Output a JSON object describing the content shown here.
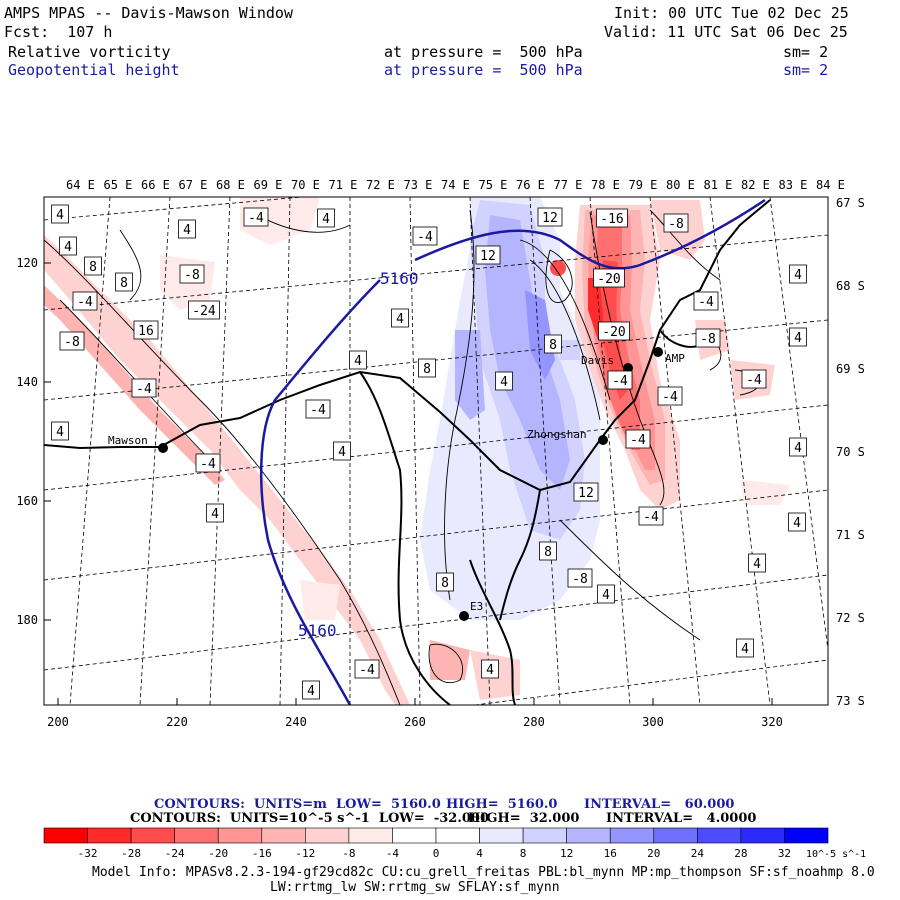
{
  "header": {
    "title": "AMPS MPAS -- Davis-Mawson Window",
    "init": "Init: 00 UTC Tue 02 Dec 25",
    "fcst": "Fcst:  107 h",
    "valid": "Valid: 11 UTC Sat 06 Dec 25",
    "fields": [
      {
        "name": "Relative vorticity",
        "level": "at pressure =  500 hPa",
        "sm": "sm= 2",
        "color": "#000000"
      },
      {
        "name": "Geopotential height",
        "level": "at pressure =  500 hPa",
        "sm": "sm= 2",
        "color": "#1a1aa0"
      }
    ]
  },
  "map": {
    "lon_labels": [
      "64 E",
      "65 E",
      "66 E",
      "67 E",
      "68 E",
      "69 E",
      "70 E",
      "71 E",
      "72 E",
      "73 E",
      "74 E",
      "75 E",
      "76 E",
      "77 E",
      "78 E",
      "79 E",
      "80 E",
      "81 E",
      "82 E",
      "83 E",
      "84 E"
    ],
    "lat_labels": [
      "67 S",
      "68 S",
      "69 S",
      "70 S",
      "71 S",
      "72 S",
      "73 S"
    ],
    "x_ticks": [
      "200",
      "220",
      "240",
      "260",
      "280",
      "300",
      "320"
    ],
    "y_ticks": [
      "120",
      "140",
      "160",
      "180"
    ],
    "stations": [
      {
        "name": "Mawson"
      },
      {
        "name": "Zhongshan"
      },
      {
        "name": "Davis"
      },
      {
        "name": "AMP"
      },
      {
        "name": "E3"
      }
    ],
    "height_contour_labels": [
      "5160",
      "5160"
    ],
    "vorticity_labels": [
      "4",
      "4",
      "-4",
      "4",
      "8",
      "-4",
      "4",
      "-8",
      "8",
      "-4",
      "12",
      "12",
      "-16",
      "-8",
      "-20",
      "-24",
      "-20",
      "-4",
      "8",
      "4",
      "-4",
      "16",
      "-8",
      "4",
      "-4",
      "4",
      "8",
      "4",
      "4",
      "-4",
      "-4",
      "12",
      "-4",
      "4",
      "8",
      "8",
      "4",
      "4",
      "-4",
      "-4",
      "4",
      "-8",
      "4",
      "-4",
      "-8",
      "4",
      "4",
      "4",
      "-4",
      "4",
      "4"
    ]
  },
  "legend": {
    "height_line": {
      "label": "CONTOURS:  UNITS=m  LOW=  5160.0",
      "high": "HIGH=  5160.0",
      "interval": "INTERVAL=   60.000"
    },
    "vort_line": {
      "label": "CONTOURS:  UNITS=10^-5 s^-1  LOW=  -32.000",
      "high": "HIGH=  32.000",
      "interval": "INTERVAL=   4.0000"
    },
    "colorbar_labels": [
      "-32",
      "-28",
      "-24",
      "-20",
      "-16",
      "-12",
      "-8",
      "-4",
      "0",
      "4",
      "8",
      "12",
      "16",
      "20",
      "24",
      "28",
      "32"
    ],
    "colorbar_units": "10^-5 s^-1",
    "colors": [
      "#ff0000",
      "#ff2a2a",
      "#ff4d4d",
      "#ff7070",
      "#ff9595",
      "#ffb4b4",
      "#ffd2d2",
      "#ffeaea",
      "#ffffff",
      "#ffffff",
      "#eaeaff",
      "#d2d2ff",
      "#b4b4ff",
      "#9595ff",
      "#7070ff",
      "#4d4dff",
      "#2a2aff",
      "#0000ff"
    ]
  },
  "footer": {
    "line1": "Model Info: MPASv8.2.3-194-gf29cd82c CU:cu_grell_freitas PBL:bl_mynn MP:mp_thompson SF:sf_noahmp 8.0",
    "line2": "LW:rrtmg_lw SW:rrtmg_sw SFLAY:sf_mynn"
  }
}
